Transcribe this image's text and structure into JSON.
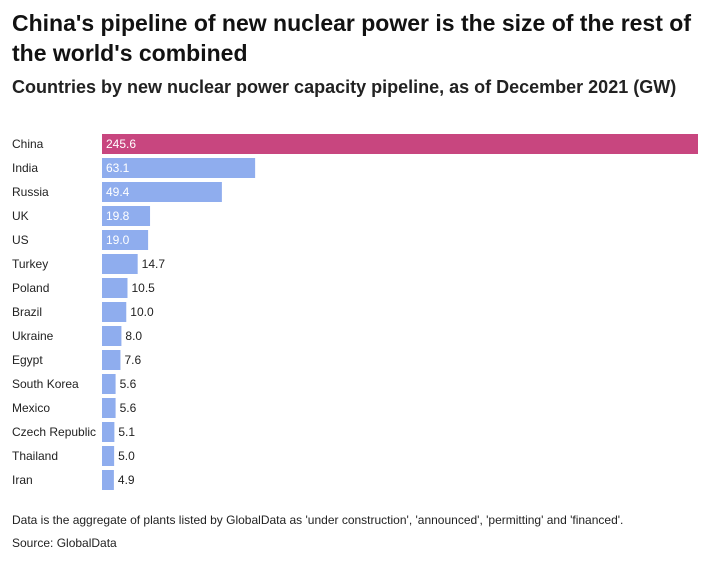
{
  "header": {
    "title": "China's pipeline of new nuclear power is the size of the rest of the world's combined",
    "subtitle": "Countries by new nuclear power capacity pipeline, as of December 2021 (GW)"
  },
  "footer": {
    "note": "Data is the aggregate of plants listed by GlobalData as 'under construction', 'announced', 'permitting' and 'financed'.",
    "source": "Source: GlobalData"
  },
  "colors": {
    "highlight": "#c8467f",
    "bar": "#8fadee"
  },
  "chart_data": {
    "type": "bar",
    "orientation": "horizontal",
    "categories": [
      "China",
      "India",
      "Russia",
      "UK",
      "US",
      "Turkey",
      "Poland",
      "Brazil",
      "Ukraine",
      "Egypt",
      "South Korea",
      "Mexico",
      "Czech Republic",
      "Thailand",
      "Iran"
    ],
    "values": [
      245.6,
      63.1,
      49.4,
      19.8,
      19.0,
      14.7,
      10.5,
      10.0,
      8.0,
      7.6,
      5.6,
      5.6,
      5.1,
      5.0,
      4.9
    ],
    "value_labels": [
      "245.6",
      "63.1",
      "49.4",
      "19.8",
      "19.0",
      "14.7",
      "10.5",
      "10.0",
      "8.0",
      "7.6",
      "5.6",
      "5.6",
      "5.1",
      "5.0",
      "4.9"
    ],
    "highlighted_category": "China",
    "xlim": [
      0,
      245.6
    ],
    "grid": false,
    "legend": "none"
  }
}
